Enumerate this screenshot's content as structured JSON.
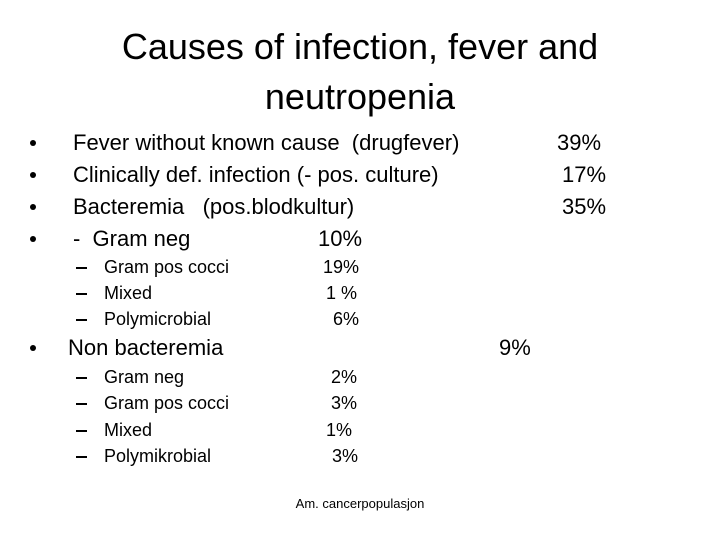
{
  "title": "Causes of infection, fever and neutropenia",
  "bullets": [
    {
      "label": "Fever without known cause  (drugfever)",
      "value": "39%"
    },
    {
      "label": "Clinically def. infection (- pos. culture)",
      "value": "17%"
    },
    {
      "label": "Bacteremia   (pos.blodkultur)",
      "value": "35%"
    },
    {
      "label": "-  Gram neg",
      "value": "10%"
    }
  ],
  "sub_items": [
    {
      "label": "Gram pos cocci",
      "value": "19%"
    },
    {
      "label": "Mixed",
      "value": "1 %"
    },
    {
      "label": "Polymicrobial",
      "value": "6%"
    }
  ],
  "non_bacteremia": {
    "label": "Non bacteremia",
    "value": "9%"
  },
  "non_bacteremia_items": [
    {
      "label": "Gram neg",
      "value": "2%"
    },
    {
      "label": "Gram pos cocci",
      "value": "3%"
    },
    {
      "label": "Mixed",
      "value": "1%"
    },
    {
      "label": "Polymikrobial",
      "value": "3%"
    }
  ],
  "footer": "Am. cancerpopulasjon"
}
